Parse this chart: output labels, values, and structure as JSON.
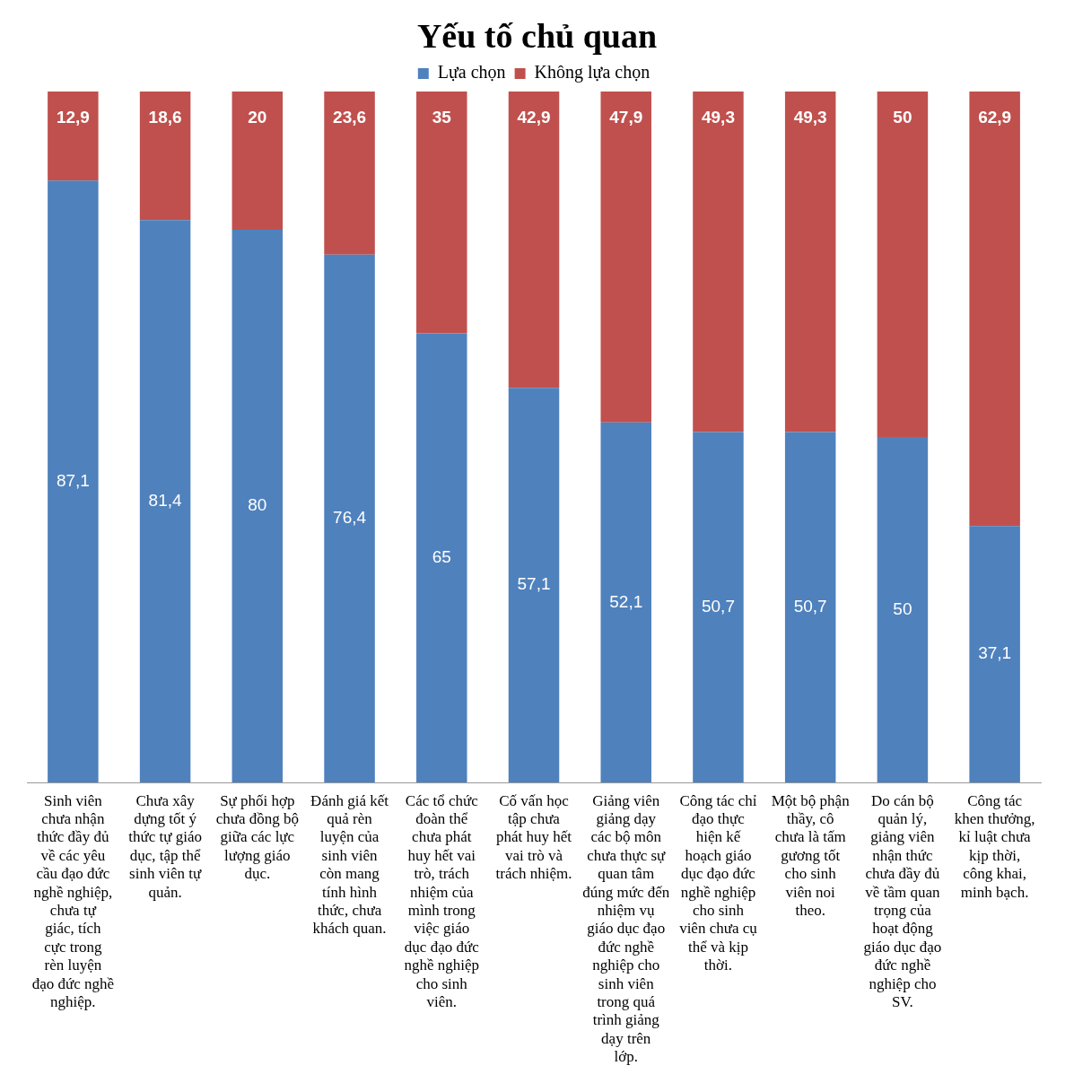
{
  "chart_data": {
    "type": "bar",
    "title": "Yếu tố chủ quan",
    "stacked": true,
    "legend": "top",
    "grid": false,
    "tick_labels": "x",
    "categories": [
      "Sinh viên chưa nhận thức đầy đủ về các yêu cầu đạo đức nghề nghiệp, chưa tự giác, tích cực trong rèn luyện đạo đức nghề nghiệp.",
      "Chưa xây dựng tốt ý thức tự giáo dục, tập thể sinh viên tự quản.",
      "Sự phối hợp chưa đồng bộ giữa các lực lượng giáo dục.",
      "Đánh giá kết quả rèn luyện của sinh viên còn mang tính hình thức, chưa khách quan.",
      "Các tổ chức đoàn thể chưa phát huy hết vai trò, trách nhiệm của mình trong việc giáo dục đạo đức nghề nghiệp cho sinh viên.",
      "Cố vấn học tập chưa phát huy hết vai trò và trách nhiệm.",
      "Giảng viên giảng dạy các bộ môn chưa thực sự quan tâm đúng mức đến nhiệm vụ giáo dục đạo đức nghề nghiệp cho sinh viên trong quá trình giảng dạy trên lớp.",
      "Công tác chỉ đạo thực hiện kế hoạch giáo dục đạo đức nghề nghiệp cho sinh viên chưa cụ thể và kịp thời.",
      "Một bộ phận thầy, cô chưa là tấm gương tốt cho sinh viên noi theo.",
      "Do cán bộ quản lý, giảng viên nhận thức chưa đầy đủ về tầm quan trọng của hoạt động giáo dục đạo đức nghề nghiệp cho SV.",
      "Công tác khen thưởng, kỉ luật chưa kịp thời, công khai, minh bạch."
    ],
    "series": [
      {
        "name": "Lựa chọn",
        "color": "#4f81bd",
        "values": [
          87.1,
          81.4,
          80,
          76.4,
          65,
          57.1,
          52.1,
          50.7,
          50.7,
          50,
          37.1
        ],
        "value_labels": [
          "87,1",
          "81,4",
          "80",
          "76,4",
          "65",
          "57,1",
          "52,1",
          "50,7",
          "50,7",
          "50",
          "37,1"
        ]
      },
      {
        "name": "Không lựa chọn",
        "color": "#c0504d",
        "values": [
          12.9,
          18.6,
          20,
          23.6,
          35,
          42.9,
          47.9,
          49.3,
          49.3,
          50,
          62.9
        ],
        "value_labels": [
          "12,9",
          "18,6",
          "20",
          "23,6",
          "35",
          "42,9",
          "47,9",
          "49,3",
          "49,3",
          "50",
          "62,9"
        ]
      }
    ]
  }
}
